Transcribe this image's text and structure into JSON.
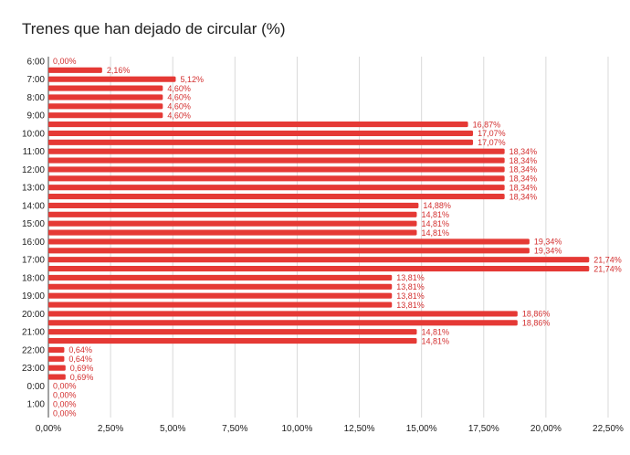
{
  "chart_data": {
    "type": "bar",
    "orientation": "horizontal",
    "title": "Trenes que han dejado de circular (%)",
    "xlabel": "",
    "ylabel": "",
    "xlim": [
      0,
      22.5
    ],
    "grid": true,
    "legend": "none",
    "bar_color": "#e53935",
    "label_color": "#d32f2f",
    "x_tick_labels": [
      "0,00%",
      "2,50%",
      "5,00%",
      "7,50%",
      "10,00%",
      "12,50%",
      "15,00%",
      "17,50%",
      "20,00%",
      "22,50%"
    ],
    "y_tick_labels": [
      "6:00",
      "7:00",
      "8:00",
      "9:00",
      "10:00",
      "11:00",
      "12:00",
      "13:00",
      "14:00",
      "15:00",
      "16:00",
      "17:00",
      "18:00",
      "19:00",
      "20:00",
      "21:00",
      "22:00",
      "23:00",
      "0:00",
      "1:00"
    ],
    "values": [
      0.0,
      2.16,
      5.12,
      4.6,
      4.6,
      4.6,
      4.6,
      16.87,
      17.07,
      17.07,
      18.34,
      18.34,
      18.34,
      18.34,
      18.34,
      18.34,
      14.88,
      14.81,
      14.81,
      14.81,
      19.34,
      19.34,
      21.74,
      21.74,
      13.81,
      13.81,
      13.81,
      13.81,
      18.86,
      18.86,
      14.81,
      14.81,
      0.64,
      0.64,
      0.69,
      0.69,
      0.0,
      0.0,
      0.0,
      0.0
    ],
    "value_labels": [
      "0,00%",
      "2,16%",
      "5,12%",
      "4,60%",
      "4,60%",
      "4,60%",
      "4,60%",
      "16,87%",
      "17,07%",
      "17,07%",
      "18,34%",
      "18,34%",
      "18,34%",
      "18,34%",
      "18,34%",
      "18,34%",
      "14,88%",
      "14,81%",
      "14,81%",
      "14,81%",
      "19,34%",
      "19,34%",
      "21,74%",
      "21,74%",
      "13,81%",
      "13,81%",
      "13,81%",
      "13,81%",
      "18,86%",
      "18,86%",
      "14,81%",
      "14,81%",
      "0,64%",
      "0,64%",
      "0,69%",
      "0,69%",
      "0,00%",
      "0,00%",
      "0,00%",
      "0,00%"
    ]
  }
}
